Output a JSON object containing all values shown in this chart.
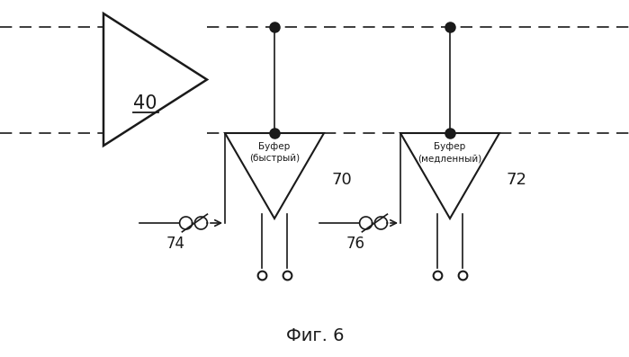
{
  "bg_color": "#ffffff",
  "line_color": "#1a1a1a",
  "title": "Фиг. 6",
  "label_40": "40",
  "label_70": "70",
  "label_72": "72",
  "label_74": "74",
  "label_76": "76",
  "buf1_text": "Буфер\n(быстрый)",
  "buf2_text": "Буфер\n(медленный)",
  "figsize": [
    6.99,
    3.97
  ],
  "dpi": 100
}
